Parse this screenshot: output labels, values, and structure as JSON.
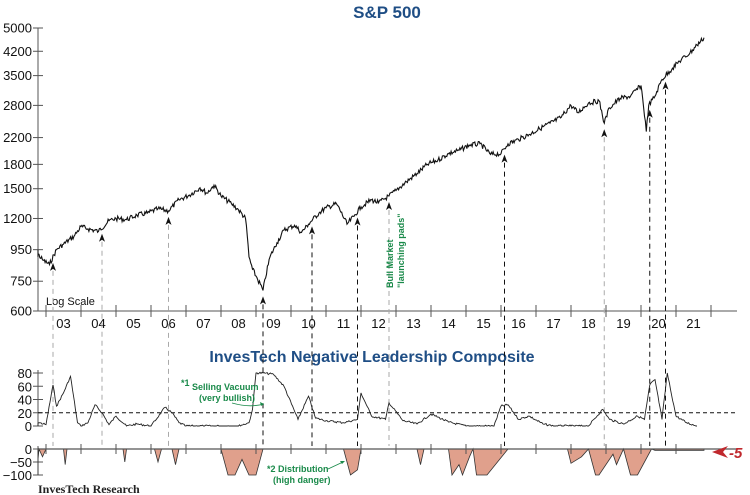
{
  "chart_data": [
    {
      "type": "line",
      "title": "S&P 500",
      "yscale": "log",
      "ylim": [
        600,
        5000
      ],
      "yticks": [
        600,
        750,
        950,
        1200,
        1500,
        1800,
        2200,
        2800,
        3500,
        4200,
        5000
      ],
      "xlim": [
        2002.5,
        2021.8
      ],
      "xtick_labels": [
        "03",
        "04",
        "05",
        "06",
        "07",
        "08",
        "09",
        "10",
        "11",
        "12",
        "13",
        "14",
        "15",
        "16",
        "17",
        "18",
        "19",
        "20",
        "21"
      ],
      "scale_note": "Log Scale",
      "series": [
        {
          "name": "S&P 500",
          "x": [
            2002.5,
            2002.7,
            2002.9,
            2003.1,
            2003.3,
            2003.5,
            2003.8,
            2004.0,
            2004.2,
            2004.5,
            2004.8,
            2005.0,
            2005.3,
            2005.6,
            2005.9,
            2006.2,
            2006.5,
            2006.8,
            2007.1,
            2007.4,
            2007.6,
            2007.8,
            2008.0,
            2008.3,
            2008.5,
            2008.7,
            2008.8,
            2008.9,
            2009.0,
            2009.2,
            2009.4,
            2009.6,
            2009.8,
            2010.1,
            2010.3,
            2010.5,
            2010.8,
            2011.0,
            2011.3,
            2011.6,
            2011.8,
            2012.0,
            2012.3,
            2012.5,
            2012.8,
            2013.0,
            2013.3,
            2013.6,
            2013.9,
            2014.2,
            2014.5,
            2014.8,
            2015.1,
            2015.4,
            2015.7,
            2016.0,
            2016.2,
            2016.5,
            2016.8,
            2017.1,
            2017.4,
            2017.7,
            2018.0,
            2018.2,
            2018.5,
            2018.8,
            2018.95,
            2019.1,
            2019.4,
            2019.7,
            2020.0,
            2020.15,
            2020.22,
            2020.4,
            2020.6,
            2020.9,
            2021.1,
            2021.4,
            2021.6,
            2021.8
          ],
          "y": [
            900,
            940,
            880,
            850,
            950,
            990,
            1050,
            1130,
            1110,
            1090,
            1180,
            1200,
            1190,
            1230,
            1250,
            1290,
            1270,
            1380,
            1430,
            1510,
            1450,
            1540,
            1420,
            1340,
            1280,
            1200,
            900,
            820,
            780,
            700,
            900,
            1000,
            1100,
            1140,
            1080,
            1150,
            1250,
            1300,
            1340,
            1150,
            1220,
            1310,
            1380,
            1350,
            1420,
            1480,
            1580,
            1680,
            1800,
            1860,
            1950,
            2000,
            2080,
            2100,
            1940,
            1950,
            2100,
            2170,
            2250,
            2350,
            2450,
            2550,
            2800,
            2650,
            2850,
            2900,
            2450,
            2750,
            2950,
            3000,
            3250,
            2300,
            2800,
            3000,
            3400,
            3700,
            3900,
            4150,
            4400,
            4650
          ]
        }
      ],
      "launch_pad_markers_years": [
        2003.2,
        2004.6,
        2006.5,
        2009.2,
        2010.6,
        2011.9,
        2012.8,
        2016.1,
        2018.95,
        2020.25,
        2020.7
      ]
    },
    {
      "type": "line",
      "title": "InvesTech Negative Leadership Composite",
      "subpanels": [
        {
          "name": "Selling Vacuum",
          "ylim": [
            0,
            80
          ],
          "yticks": [
            0,
            20,
            40,
            60,
            80
          ],
          "threshold": 20,
          "x": [
            2002.5,
            2002.8,
            2003.0,
            2003.2,
            2003.3,
            2003.5,
            2003.7,
            2003.9,
            2004.0,
            2004.2,
            2004.4,
            2004.6,
            2004.8,
            2005.0,
            2005.3,
            2005.6,
            2006.0,
            2006.4,
            2006.6,
            2006.8,
            2007.0,
            2007.5,
            2008.0,
            2008.5,
            2008.8,
            2008.9,
            2009.0,
            2009.2,
            2009.5,
            2009.8,
            2010.2,
            2010.5,
            2010.7,
            2011.0,
            2011.5,
            2011.9,
            2012.0,
            2012.3,
            2012.7,
            2012.8,
            2013.2,
            2013.6,
            2014.0,
            2014.5,
            2015.0,
            2015.5,
            2015.8,
            2016.0,
            2016.2,
            2016.5,
            2016.8,
            2017.2,
            2017.5,
            2018.0,
            2018.5,
            2018.9,
            2019.1,
            2019.5,
            2019.9,
            2020.1,
            2020.25,
            2020.4,
            2020.6,
            2020.75,
            2021.0,
            2021.3,
            2021.6
          ],
          "y": [
            0,
            5,
            2,
            62,
            30,
            50,
            75,
            5,
            0,
            5,
            32,
            20,
            2,
            15,
            0,
            3,
            0,
            28,
            20,
            5,
            0,
            0,
            0,
            0,
            5,
            25,
            80,
            80,
            78,
            60,
            10,
            45,
            12,
            8,
            5,
            10,
            50,
            15,
            10,
            35,
            8,
            3,
            18,
            6,
            0,
            0,
            0,
            30,
            32,
            10,
            15,
            3,
            0,
            0,
            0,
            25,
            10,
            3,
            15,
            10,
            62,
            70,
            10,
            80,
            15,
            5,
            0
          ]
        },
        {
          "name": "Distribution",
          "ylim": [
            -100,
            0
          ],
          "yticks": [
            0,
            -50,
            -100
          ],
          "current_value_label": "-5",
          "x": [
            2002.5,
            2002.6,
            2002.8,
            2002.9,
            2003.0,
            2003.5,
            2003.55,
            2003.6,
            2005.2,
            2005.25,
            2005.3,
            2006.1,
            2006.2,
            2006.3,
            2006.6,
            2006.7,
            2006.8,
            2008.0,
            2008.2,
            2008.4,
            2008.6,
            2008.8,
            2009.0,
            2009.2,
            2011.5,
            2011.7,
            2011.9,
            2012.0,
            2013.6,
            2013.7,
            2013.8,
            2014.5,
            2014.6,
            2014.8,
            2014.9,
            2015.1,
            2015.2,
            2015.3,
            2015.6,
            2016.2,
            2017.9,
            2018.0,
            2018.3,
            2018.5,
            2018.7,
            2018.8,
            2019.2,
            2019.3,
            2019.5,
            2019.7,
            2019.9,
            2020.3,
            2020.4,
            2021.8
          ],
          "y": [
            -100,
            -40,
            0,
            -30,
            0,
            0,
            -60,
            0,
            0,
            -50,
            0,
            0,
            -50,
            0,
            0,
            -60,
            0,
            0,
            -100,
            -100,
            -40,
            -100,
            -100,
            0,
            0,
            -100,
            -80,
            0,
            0,
            -60,
            0,
            0,
            -100,
            -60,
            -100,
            -30,
            0,
            -100,
            -100,
            0,
            0,
            -55,
            -30,
            0,
            -100,
            -100,
            -20,
            -60,
            0,
            -100,
            -100,
            0,
            -5,
            -5
          ]
        }
      ],
      "annotations": [
        {
          "marker": "*1",
          "text": "Selling Vacuum",
          "subtext": "(very bullish)"
        },
        {
          "marker": "*2",
          "text": "Distribution",
          "subtext": "(high danger)"
        },
        {
          "text": "Bull Market",
          "subtext": "\"launching pads\""
        }
      ]
    }
  ],
  "colors": {
    "title": "#1f4e85",
    "annotation": "#1a8a4a",
    "fill": "#e0a08c",
    "current_marker": "#c0282d"
  },
  "credit": "InvesTech Research"
}
